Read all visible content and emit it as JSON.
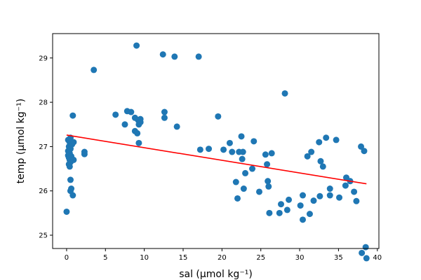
{
  "chart_data": {
    "type": "scatter",
    "xlabel": "sal (μmol kg⁻¹)",
    "ylabel": "temp (μmol kg⁻¹)",
    "xlim": [
      -1.8,
      40.2
    ],
    "ylim": [
      24.7,
      29.55
    ],
    "xticks": [
      0,
      5,
      10,
      15,
      20,
      25,
      30,
      35,
      40
    ],
    "yticks": [
      25,
      26,
      27,
      28,
      29
    ],
    "point_color": "#1f77b4",
    "line_color": "#ff0000",
    "grid": false,
    "series": [
      {
        "values": [
          [
            0.0,
            25.53
          ],
          [
            0.2,
            26.8
          ],
          [
            0.2,
            26.9
          ],
          [
            0.2,
            27.15
          ],
          [
            0.3,
            26.6
          ],
          [
            0.3,
            26.75
          ],
          [
            0.3,
            27.0
          ],
          [
            0.4,
            26.55
          ],
          [
            0.4,
            26.7
          ],
          [
            0.4,
            26.85
          ],
          [
            0.4,
            27.1
          ],
          [
            0.5,
            26.0
          ],
          [
            0.5,
            26.25
          ],
          [
            0.5,
            26.65
          ],
          [
            0.5,
            26.95
          ],
          [
            0.5,
            27.2
          ],
          [
            0.6,
            26.05
          ],
          [
            0.6,
            26.78
          ],
          [
            0.7,
            26.7
          ],
          [
            0.7,
            27.05
          ],
          [
            0.8,
            25.9
          ],
          [
            0.8,
            27.7
          ],
          [
            0.9,
            27.1
          ],
          [
            0.9,
            26.7
          ],
          [
            2.3,
            26.83
          ],
          [
            2.3,
            26.88
          ],
          [
            3.5,
            28.73
          ],
          [
            6.3,
            27.72
          ],
          [
            7.5,
            27.5
          ],
          [
            7.8,
            27.8
          ],
          [
            8.3,
            27.78
          ],
          [
            8.8,
            27.65
          ],
          [
            8.8,
            27.35
          ],
          [
            9.0,
            29.28
          ],
          [
            9.1,
            27.3
          ],
          [
            9.2,
            27.6
          ],
          [
            9.3,
            27.5
          ],
          [
            9.3,
            27.08
          ],
          [
            9.5,
            27.62
          ],
          [
            9.5,
            27.55
          ],
          [
            12.4,
            29.08
          ],
          [
            12.6,
            27.78
          ],
          [
            12.6,
            27.65
          ],
          [
            13.9,
            29.03
          ],
          [
            14.2,
            27.45
          ],
          [
            17.0,
            29.03
          ],
          [
            17.2,
            26.93
          ],
          [
            18.3,
            26.95
          ],
          [
            19.5,
            27.68
          ],
          [
            20.2,
            26.93
          ],
          [
            21.0,
            27.08
          ],
          [
            21.3,
            26.88
          ],
          [
            21.8,
            26.2
          ],
          [
            22.0,
            25.83
          ],
          [
            22.2,
            26.88
          ],
          [
            22.5,
            27.23
          ],
          [
            22.6,
            26.72
          ],
          [
            22.7,
            26.88
          ],
          [
            22.8,
            26.05
          ],
          [
            23.0,
            26.4
          ],
          [
            23.9,
            26.5
          ],
          [
            24.1,
            27.12
          ],
          [
            24.8,
            25.98
          ],
          [
            25.6,
            26.82
          ],
          [
            25.8,
            26.6
          ],
          [
            25.9,
            26.22
          ],
          [
            26.0,
            26.1
          ],
          [
            26.1,
            25.5
          ],
          [
            26.4,
            26.85
          ],
          [
            27.4,
            25.5
          ],
          [
            27.6,
            25.7
          ],
          [
            28.1,
            28.2
          ],
          [
            28.4,
            25.57
          ],
          [
            28.6,
            25.8
          ],
          [
            30.1,
            25.67
          ],
          [
            30.4,
            25.35
          ],
          [
            30.4,
            25.9
          ],
          [
            31.0,
            26.78
          ],
          [
            31.3,
            25.48
          ],
          [
            31.5,
            26.88
          ],
          [
            31.8,
            25.78
          ],
          [
            32.5,
            27.1
          ],
          [
            32.6,
            25.88
          ],
          [
            32.7,
            26.67
          ],
          [
            33.0,
            26.55
          ],
          [
            33.4,
            27.2
          ],
          [
            33.9,
            25.9
          ],
          [
            33.9,
            26.05
          ],
          [
            34.7,
            27.15
          ],
          [
            35.1,
            25.85
          ],
          [
            35.9,
            26.12
          ],
          [
            36.0,
            26.3
          ],
          [
            36.5,
            26.22
          ],
          [
            37.0,
            25.98
          ],
          [
            37.3,
            25.77
          ],
          [
            37.9,
            27.0
          ],
          [
            38.0,
            24.6
          ],
          [
            38.3,
            26.9
          ],
          [
            38.5,
            24.73
          ],
          [
            38.6,
            24.48
          ]
        ]
      }
    ],
    "fit_line": {
      "x": [
        0.0,
        38.6
      ],
      "y": [
        27.26,
        26.16
      ]
    }
  }
}
